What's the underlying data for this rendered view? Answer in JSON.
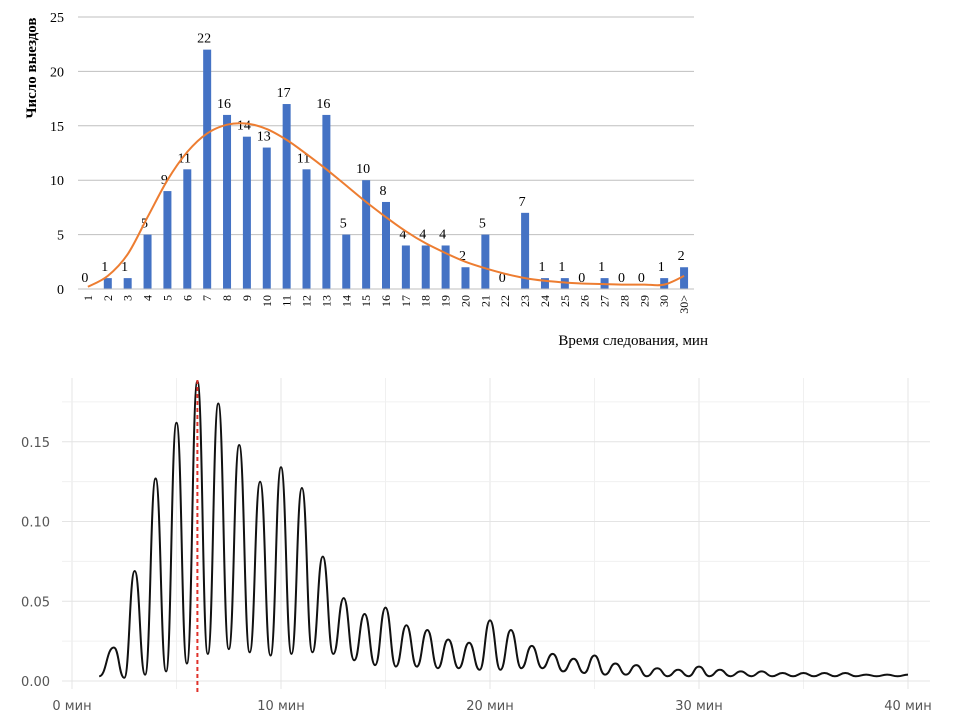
{
  "chart_data": [
    {
      "type": "bar",
      "title": "",
      "ylabel": "Число выездов",
      "xlabel": "Время следования, мин",
      "ylim": [
        0,
        25
      ],
      "yticks": [
        0,
        5,
        10,
        15,
        20,
        25
      ],
      "grid": "horizontal",
      "bar_color": "#4472c4",
      "curve_color": "#ed7d31",
      "categories": [
        "1",
        "2",
        "3",
        "4",
        "5",
        "6",
        "7",
        "8",
        "9",
        "10",
        "11",
        "12",
        "13",
        "14",
        "15",
        "16",
        "17",
        "18",
        "19",
        "20",
        "21",
        "22",
        "23",
        "24",
        "25",
        "26",
        "27",
        "28",
        "29",
        "30",
        "30>"
      ],
      "values": [
        0,
        1,
        1,
        5,
        9,
        11,
        22,
        16,
        14,
        13,
        17,
        11,
        16,
        5,
        10,
        8,
        4,
        4,
        4,
        2,
        5,
        0,
        7,
        1,
        1,
        0,
        1,
        0,
        0,
        1,
        2
      ],
      "fit_curve": [
        0.2,
        1.2,
        3.2,
        6.6,
        10.0,
        12.6,
        14.3,
        15.1,
        15.2,
        14.7,
        13.7,
        12.4,
        11.0,
        9.5,
        8.0,
        6.6,
        5.3,
        4.2,
        3.3,
        2.5,
        1.9,
        1.4,
        1.0,
        0.75,
        0.6,
        0.5,
        0.45,
        0.4,
        0.4,
        0.4,
        1.2
      ]
    },
    {
      "type": "line",
      "title": "",
      "xlabel": "",
      "ylabel": "",
      "xlim": [
        0,
        40
      ],
      "ylim": [
        0,
        0.19
      ],
      "xticks": [
        0,
        10,
        20,
        30,
        40
      ],
      "xtick_labels": [
        "0 мин",
        "10 мин",
        "20 мин",
        "30 мин",
        "40 мин"
      ],
      "yticks": [
        0,
        0.05,
        0.1,
        0.15
      ],
      "ytick_labels": [
        "0.00",
        "0.05",
        "0.10",
        "0.15"
      ],
      "grid": "both",
      "line_color": "#111111",
      "marker_line": {
        "x": 6,
        "color": "#e0312a",
        "style": "dashed"
      },
      "baseline": 0.003,
      "peaks": [
        {
          "x": 2,
          "y": 0.021
        },
        {
          "x": 3,
          "y": 0.069
        },
        {
          "x": 4,
          "y": 0.127
        },
        {
          "x": 5,
          "y": 0.162
        },
        {
          "x": 6,
          "y": 0.188
        },
        {
          "x": 7,
          "y": 0.174
        },
        {
          "x": 8,
          "y": 0.148
        },
        {
          "x": 9,
          "y": 0.125
        },
        {
          "x": 10,
          "y": 0.134
        },
        {
          "x": 11,
          "y": 0.121
        },
        {
          "x": 12,
          "y": 0.078
        },
        {
          "x": 13,
          "y": 0.052
        },
        {
          "x": 14,
          "y": 0.042
        },
        {
          "x": 15,
          "y": 0.046
        },
        {
          "x": 16,
          "y": 0.035
        },
        {
          "x": 17,
          "y": 0.032
        },
        {
          "x": 18,
          "y": 0.026
        },
        {
          "x": 19,
          "y": 0.024
        },
        {
          "x": 20,
          "y": 0.038
        },
        {
          "x": 21,
          "y": 0.032
        },
        {
          "x": 22,
          "y": 0.022
        },
        {
          "x": 23,
          "y": 0.017
        },
        {
          "x": 24,
          "y": 0.014
        },
        {
          "x": 25,
          "y": 0.016
        },
        {
          "x": 26,
          "y": 0.011
        },
        {
          "x": 27,
          "y": 0.01
        },
        {
          "x": 28,
          "y": 0.008
        },
        {
          "x": 29,
          "y": 0.007
        },
        {
          "x": 30,
          "y": 0.009
        },
        {
          "x": 31,
          "y": 0.007
        },
        {
          "x": 32,
          "y": 0.006
        },
        {
          "x": 33,
          "y": 0.006
        },
        {
          "x": 34,
          "y": 0.005
        },
        {
          "x": 35,
          "y": 0.005
        },
        {
          "x": 36,
          "y": 0.005
        },
        {
          "x": 37,
          "y": 0.005
        },
        {
          "x": 38,
          "y": 0.004
        },
        {
          "x": 39,
          "y": 0.004
        },
        {
          "x": 40,
          "y": 0.004
        }
      ],
      "troughs": [
        0.002,
        0.004,
        0.006,
        0.011,
        0.017,
        0.02,
        0.018,
        0.016,
        0.017,
        0.018,
        0.017,
        0.013,
        0.01,
        0.009,
        0.009,
        0.008,
        0.008,
        0.007,
        0.007,
        0.008,
        0.008,
        0.006,
        0.005,
        0.004,
        0.004,
        0.003,
        0.003,
        0.003,
        0.003,
        0.003,
        0.003,
        0.003,
        0.003,
        0.003,
        0.003,
        0.003,
        0.003,
        0.003,
        0.003
      ]
    }
  ]
}
